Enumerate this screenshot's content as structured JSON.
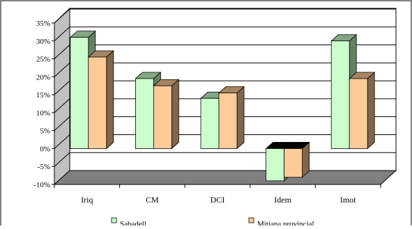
{
  "chart_data": {
    "type": "bar",
    "categories": [
      "Iriq",
      "CM",
      "DCI",
      "Idem",
      "Imot"
    ],
    "series": [
      {
        "name": "Sabadell",
        "values": [
          31,
          19.5,
          14,
          -9,
          30
        ],
        "color": "#ccffcc"
      },
      {
        "name": "Mitjana provincial",
        "values": [
          25.5,
          17.5,
          15.5,
          -8,
          19.5
        ],
        "color": "#ffcc99"
      }
    ],
    "ylim": [
      -10,
      35
    ],
    "yticks": [
      "35%",
      "30%",
      "25%",
      "20%",
      "15%",
      "10%",
      "5%",
      "0%",
      "-5%",
      "-10%"
    ],
    "grid": true,
    "three_d": true,
    "legend_position": "bottom"
  }
}
